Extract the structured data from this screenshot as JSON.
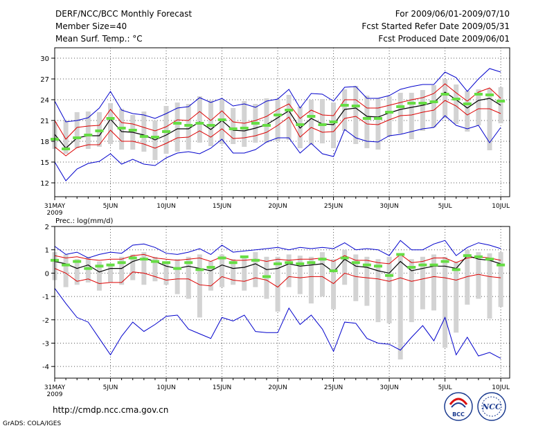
{
  "header": {
    "title": "DERF/NCC/BCC Monthly Forecast",
    "member_size": "Member Size=40",
    "variable": "Mean Surf. Temp.: °C",
    "period": "For 2009/06/01-2009/07/10",
    "started": "Fcst Started Refer Date 2009/05/31",
    "produced": "Fcst Produced Date 2009/06/01"
  },
  "footer": {
    "url": "http://cmdp.ncc.cma.gov.cn",
    "grads": "GrADS: COLA/IGES",
    "logo_bcc_text": "BCC",
    "logo_ncc_text": "NCC"
  },
  "colors": {
    "envelope": "#0000cc",
    "spread": "#dd0000",
    "mean": "#000000",
    "box": "#d3d3d3",
    "obs": "#66dd44",
    "grid": "#555555"
  },
  "chart_data": [
    {
      "type": "line",
      "title": "Mean Surf. Temp.: °C",
      "xlabel": "",
      "ylabel": "°C",
      "x_ticks": [
        {
          "day": 0,
          "label": "31MAY",
          "sublabel": "2009"
        },
        {
          "day": 5,
          "label": "5JUN"
        },
        {
          "day": 10,
          "label": "10JUN"
        },
        {
          "day": 15,
          "label": "15JUN"
        },
        {
          "day": 20,
          "label": "20JUN"
        },
        {
          "day": 25,
          "label": "25JUN"
        },
        {
          "day": 30,
          "label": "30JUN"
        },
        {
          "day": 35,
          "label": "5JUL"
        },
        {
          "day": 40,
          "label": "10JUL"
        }
      ],
      "xlim": [
        0,
        40.8
      ],
      "ylim": [
        10,
        31.5
      ],
      "y_ticks": [
        12,
        15,
        18,
        21,
        24,
        27,
        30
      ],
      "grid": true,
      "days": [
        0,
        1,
        2,
        3,
        4,
        5,
        6,
        7,
        8,
        9,
        10,
        11,
        12,
        13,
        14,
        15,
        16,
        17,
        18,
        19,
        20,
        21,
        22,
        23,
        24,
        25,
        26,
        27,
        28,
        29,
        30,
        31,
        32,
        33,
        34,
        35,
        36,
        37,
        38,
        39,
        40
      ],
      "series": [
        {
          "name": "ensemble max",
          "values": [
            23.8,
            20.8,
            21.0,
            21.4,
            22.8,
            25.2,
            22.5,
            22.0,
            21.8,
            21.3,
            22.0,
            22.8,
            23.0,
            24.3,
            23.6,
            24.2,
            23.1,
            23.4,
            22.9,
            23.8,
            24.1,
            25.5,
            22.8,
            24.9,
            24.8,
            23.8,
            25.8,
            25.9,
            24.2,
            24.2,
            24.6,
            25.5,
            25.9,
            26.2,
            26.2,
            28.0,
            27.2,
            25.2,
            27.0,
            28.5,
            28.0
          ]
        },
        {
          "name": "ensemble min",
          "values": [
            15.0,
            12.3,
            14.0,
            14.8,
            15.1,
            16.2,
            14.7,
            15.4,
            14.7,
            14.5,
            15.6,
            16.3,
            16.5,
            16.2,
            17.0,
            18.3,
            16.3,
            16.3,
            16.8,
            17.9,
            18.5,
            18.5,
            16.3,
            17.7,
            16.2,
            15.8,
            19.7,
            18.5,
            18.0,
            17.9,
            18.8,
            19.0,
            19.4,
            19.8,
            20.0,
            21.7,
            20.3,
            19.8,
            20.3,
            17.8,
            20.0
          ]
        },
        {
          "name": "mean + spread",
          "values": [
            21.0,
            18.3,
            20.0,
            20.2,
            20.3,
            22.6,
            20.7,
            20.5,
            20.0,
            19.5,
            20.1,
            21.1,
            21.0,
            22.3,
            21.0,
            22.4,
            20.8,
            20.6,
            21.0,
            21.6,
            22.6,
            23.4,
            21.3,
            22.5,
            21.8,
            21.7,
            24.0,
            24.0,
            22.8,
            22.8,
            23.2,
            23.6,
            24.0,
            24.3,
            24.9,
            26.3,
            25.0,
            23.8,
            25.1,
            25.7,
            24.2
          ]
        },
        {
          "name": "mean - spread",
          "values": [
            17.2,
            15.9,
            17.1,
            17.5,
            17.5,
            19.6,
            18.0,
            18.0,
            17.6,
            17.0,
            17.7,
            18.5,
            18.6,
            19.5,
            18.6,
            19.8,
            18.4,
            18.5,
            18.8,
            19.3,
            20.3,
            21.5,
            18.6,
            20.0,
            19.3,
            19.4,
            21.3,
            21.6,
            20.5,
            20.4,
            21.1,
            21.7,
            21.8,
            22.2,
            22.5,
            23.9,
            23.1,
            21.8,
            22.7,
            22.7,
            22.0
          ]
        },
        {
          "name": "ensemble mean",
          "values": [
            19.0,
            17.0,
            18.5,
            18.8,
            18.8,
            21.2,
            19.4,
            19.3,
            18.9,
            18.2,
            18.9,
            19.8,
            19.8,
            20.8,
            19.7,
            21.0,
            19.6,
            19.5,
            19.9,
            20.4,
            21.4,
            22.4,
            19.9,
            21.3,
            20.5,
            20.4,
            22.6,
            22.8,
            21.6,
            21.5,
            22.1,
            22.6,
            22.9,
            23.2,
            23.6,
            25.1,
            24.0,
            22.8,
            23.9,
            24.2,
            23.2
          ]
        }
      ],
      "boxes": [
        {
          "low": 16.9,
          "high": 20.8
        },
        {
          "low": 16.2,
          "high": 21.0
        },
        {
          "low": 17.0,
          "high": 22.2
        },
        {
          "low": 16.9,
          "high": 22.3
        },
        {
          "low": 17.2,
          "high": 22.2
        },
        {
          "low": 17.6,
          "high": 23.5
        },
        {
          "low": 16.8,
          "high": 22.7
        },
        {
          "low": 16.8,
          "high": 21.8
        },
        {
          "low": 16.5,
          "high": 22.3
        },
        {
          "low": 15.3,
          "high": 21.0
        },
        {
          "low": 16.2,
          "high": 23.1
        },
        {
          "low": 16.5,
          "high": 23.6
        },
        {
          "low": 16.8,
          "high": 23.4
        },
        {
          "low": 17.8,
          "high": 24.5
        },
        {
          "low": 17.3,
          "high": 23.9
        },
        {
          "low": 17.6,
          "high": 24.1
        },
        {
          "low": 17.6,
          "high": 22.8
        },
        {
          "low": 17.2,
          "high": 23.8
        },
        {
          "low": 17.8,
          "high": 23.4
        },
        {
          "low": 17.8,
          "high": 24.2
        },
        {
          "low": 18.0,
          "high": 24.1
        },
        {
          "low": 18.2,
          "high": 24.7
        },
        {
          "low": 17.0,
          "high": 23.0
        },
        {
          "low": 17.5,
          "high": 24.0
        },
        {
          "low": 17.7,
          "high": 24.1
        },
        {
          "low": 17.0,
          "high": 23.6
        },
        {
          "low": 19.5,
          "high": 25.5
        },
        {
          "low": 17.6,
          "high": 26.0
        },
        {
          "low": 17.0,
          "high": 24.6
        },
        {
          "low": 16.8,
          "high": 24.2
        },
        {
          "low": 18.7,
          "high": 24.5
        },
        {
          "low": 19.1,
          "high": 25.0
        },
        {
          "low": 18.3,
          "high": 25.0
        },
        {
          "low": 19.5,
          "high": 25.4
        },
        {
          "low": 20.0,
          "high": 26.1
        },
        {
          "low": 21.3,
          "high": 27.0
        },
        {
          "low": 20.5,
          "high": 26.2
        },
        {
          "low": 19.4,
          "high": 25.3
        },
        {
          "low": 20.3,
          "high": 25.5
        },
        {
          "low": 16.7,
          "high": 25.6
        },
        {
          "low": 20.6,
          "high": 25.8
        }
      ],
      "observed": [
        18.3,
        16.9,
        18.5,
        18.9,
        19.5,
        21.3,
        19.9,
        19.6,
        18.7,
        18.6,
        19.4,
        20.6,
        20.3,
        20.6,
        20.3,
        21.1,
        19.8,
        19.9,
        20.6,
        20.3,
        21.8,
        22.5,
        20.4,
        21.6,
        20.4,
        20.8,
        23.2,
        23.1,
        21.3,
        21.3,
        22.2,
        23.0,
        23.5,
        23.5,
        23.7,
        24.8,
        24.1,
        23.4,
        24.8,
        24.7,
        23.8
      ]
    },
    {
      "type": "line",
      "title": "Prec.: log(mm/d)",
      "xlabel": "",
      "ylabel": "log(mm/d)",
      "x_ticks": [
        {
          "day": 0,
          "label": "31MAY",
          "sublabel": "2009"
        },
        {
          "day": 5,
          "label": "5JUN"
        },
        {
          "day": 10,
          "label": "10JUN"
        },
        {
          "day": 15,
          "label": "15JUN"
        },
        {
          "day": 20,
          "label": "20JUN"
        },
        {
          "day": 25,
          "label": "25JUN"
        },
        {
          "day": 30,
          "label": "30JUN"
        },
        {
          "day": 35,
          "label": "5JUL"
        },
        {
          "day": 40,
          "label": "10JUL"
        }
      ],
      "xlim": [
        0,
        40.8
      ],
      "ylim": [
        -4.5,
        2
      ],
      "y_ticks": [
        2,
        1,
        0,
        -1,
        -2,
        -3,
        -4
      ],
      "grid": true,
      "days": [
        0,
        1,
        2,
        3,
        4,
        5,
        6,
        7,
        8,
        9,
        10,
        11,
        12,
        13,
        14,
        15,
        16,
        17,
        18,
        19,
        20,
        21,
        22,
        23,
        24,
        25,
        26,
        27,
        28,
        29,
        30,
        31,
        32,
        33,
        34,
        35,
        36,
        37,
        38,
        39,
        40
      ],
      "series": [
        {
          "name": "ensemble max",
          "values": [
            1.15,
            0.8,
            0.9,
            0.65,
            0.8,
            0.9,
            0.85,
            1.2,
            1.25,
            1.1,
            0.85,
            0.8,
            0.9,
            1.05,
            0.8,
            1.2,
            0.9,
            0.95,
            1.0,
            1.05,
            1.1,
            1.0,
            1.1,
            1.05,
            1.1,
            1.05,
            1.3,
            1.0,
            1.05,
            1.0,
            0.75,
            1.4,
            1.0,
            1.0,
            1.25,
            1.4,
            0.75,
            1.1,
            1.3,
            1.2,
            1.05
          ]
        },
        {
          "name": "ensemble min",
          "values": [
            -0.65,
            -1.3,
            -1.9,
            -2.1,
            -2.8,
            -3.5,
            -2.7,
            -2.1,
            -2.5,
            -2.2,
            -1.85,
            -1.8,
            -2.4,
            -2.6,
            -2.8,
            -1.9,
            -2.05,
            -1.8,
            -2.5,
            -2.55,
            -2.55,
            -1.5,
            -2.2,
            -1.8,
            -2.4,
            -3.35,
            -2.1,
            -2.15,
            -2.8,
            -3.0,
            -3.05,
            -3.3,
            -2.75,
            -2.25,
            -2.9,
            -1.9,
            -3.5,
            -2.75,
            -3.55,
            -3.4,
            -3.65
          ]
        },
        {
          "name": "mean + spread",
          "values": [
            0.75,
            0.65,
            0.7,
            0.6,
            0.55,
            0.6,
            0.6,
            0.75,
            0.8,
            0.65,
            0.6,
            0.55,
            0.6,
            0.65,
            0.5,
            0.7,
            0.55,
            0.55,
            0.6,
            0.5,
            0.6,
            0.55,
            0.6,
            0.6,
            0.65,
            0.5,
            0.75,
            0.55,
            0.55,
            0.45,
            0.4,
            0.8,
            0.45,
            0.5,
            0.65,
            0.65,
            0.45,
            0.65,
            0.7,
            0.65,
            0.55
          ]
        },
        {
          "name": "mean - spread",
          "values": [
            0.2,
            0.0,
            -0.35,
            -0.25,
            -0.45,
            -0.4,
            -0.4,
            0.05,
            0.0,
            -0.15,
            -0.3,
            -0.25,
            -0.25,
            -0.5,
            -0.55,
            -0.15,
            -0.3,
            -0.35,
            -0.2,
            -0.3,
            -0.6,
            -0.15,
            -0.2,
            -0.15,
            -0.15,
            -0.45,
            0.0,
            -0.15,
            -0.2,
            -0.25,
            -0.35,
            -0.2,
            -0.35,
            -0.25,
            -0.15,
            -0.2,
            -0.3,
            -0.15,
            -0.05,
            -0.15,
            -0.2
          ]
        },
        {
          "name": "ensemble mean",
          "values": [
            0.5,
            0.4,
            0.2,
            0.35,
            0.05,
            0.2,
            0.2,
            0.5,
            0.65,
            0.5,
            0.3,
            0.2,
            0.3,
            0.2,
            0.1,
            0.35,
            0.2,
            0.25,
            0.4,
            0.15,
            0.2,
            0.4,
            0.3,
            0.35,
            0.4,
            0.05,
            0.6,
            0.3,
            0.25,
            0.1,
            0.0,
            0.5,
            0.1,
            0.2,
            0.3,
            0.3,
            0.2,
            0.75,
            0.6,
            0.55,
            0.4
          ]
        }
      ],
      "boxes": [
        {
          "low": -0.3,
          "high": 0.9
        },
        {
          "low": -0.6,
          "high": 0.8
        },
        {
          "low": -0.5,
          "high": 0.6
        },
        {
          "low": -0.4,
          "high": 0.7
        },
        {
          "low": -0.75,
          "high": 0.5
        },
        {
          "low": -0.4,
          "high": 0.4
        },
        {
          "low": -0.5,
          "high": 0.7
        },
        {
          "low": -0.3,
          "high": 0.8
        },
        {
          "low": -0.5,
          "high": 0.9
        },
        {
          "low": -0.35,
          "high": 0.7
        },
        {
          "low": -0.5,
          "high": 0.5
        },
        {
          "low": -0.9,
          "high": 0.6
        },
        {
          "low": -1.1,
          "high": 0.7
        },
        {
          "low": -1.9,
          "high": 0.8
        },
        {
          "low": -0.75,
          "high": 0.5
        },
        {
          "low": -0.6,
          "high": 0.8
        },
        {
          "low": -0.5,
          "high": 0.6
        },
        {
          "low": -0.75,
          "high": 0.75
        },
        {
          "low": -0.6,
          "high": 0.9
        },
        {
          "low": -1.1,
          "high": 0.7
        },
        {
          "low": -1.65,
          "high": 0.7
        },
        {
          "low": -0.6,
          "high": 0.8
        },
        {
          "low": -0.9,
          "high": 0.75
        },
        {
          "low": -1.3,
          "high": 0.7
        },
        {
          "low": -1.0,
          "high": 0.9
        },
        {
          "low": -1.55,
          "high": 0.6
        },
        {
          "low": -0.5,
          "high": 1.0
        },
        {
          "low": -1.2,
          "high": 0.8
        },
        {
          "low": -1.4,
          "high": 0.7
        },
        {
          "low": -2.1,
          "high": 0.6
        },
        {
          "low": -2.15,
          "high": 0.7
        },
        {
          "low": -3.7,
          "high": 0.8
        },
        {
          "low": -2.1,
          "high": 0.6
        },
        {
          "low": -1.55,
          "high": 0.7
        },
        {
          "low": -1.6,
          "high": 0.8
        },
        {
          "low": -3.2,
          "high": 0.7
        },
        {
          "low": -2.55,
          "high": 0.5
        },
        {
          "low": -1.35,
          "high": 1.0
        },
        {
          "low": -1.1,
          "high": 0.9
        },
        {
          "low": -1.95,
          "high": 0.85
        },
        {
          "low": -1.45,
          "high": 0.9
        }
      ],
      "observed": [
        0.55,
        0.35,
        0.5,
        0.2,
        0.3,
        0.35,
        0.45,
        0.65,
        0.6,
        0.5,
        0.45,
        0.2,
        0.45,
        0.15,
        0.25,
        0.65,
        0.45,
        0.7,
        0.55,
        -0.15,
        0.4,
        0.45,
        0.4,
        0.45,
        0.6,
        0.1,
        0.65,
        0.45,
        0.35,
        0.3,
        -0.1,
        0.8,
        0.25,
        0.35,
        0.35,
        0.5,
        0.15,
        0.75,
        0.7,
        0.6,
        0.35
      ]
    }
  ]
}
